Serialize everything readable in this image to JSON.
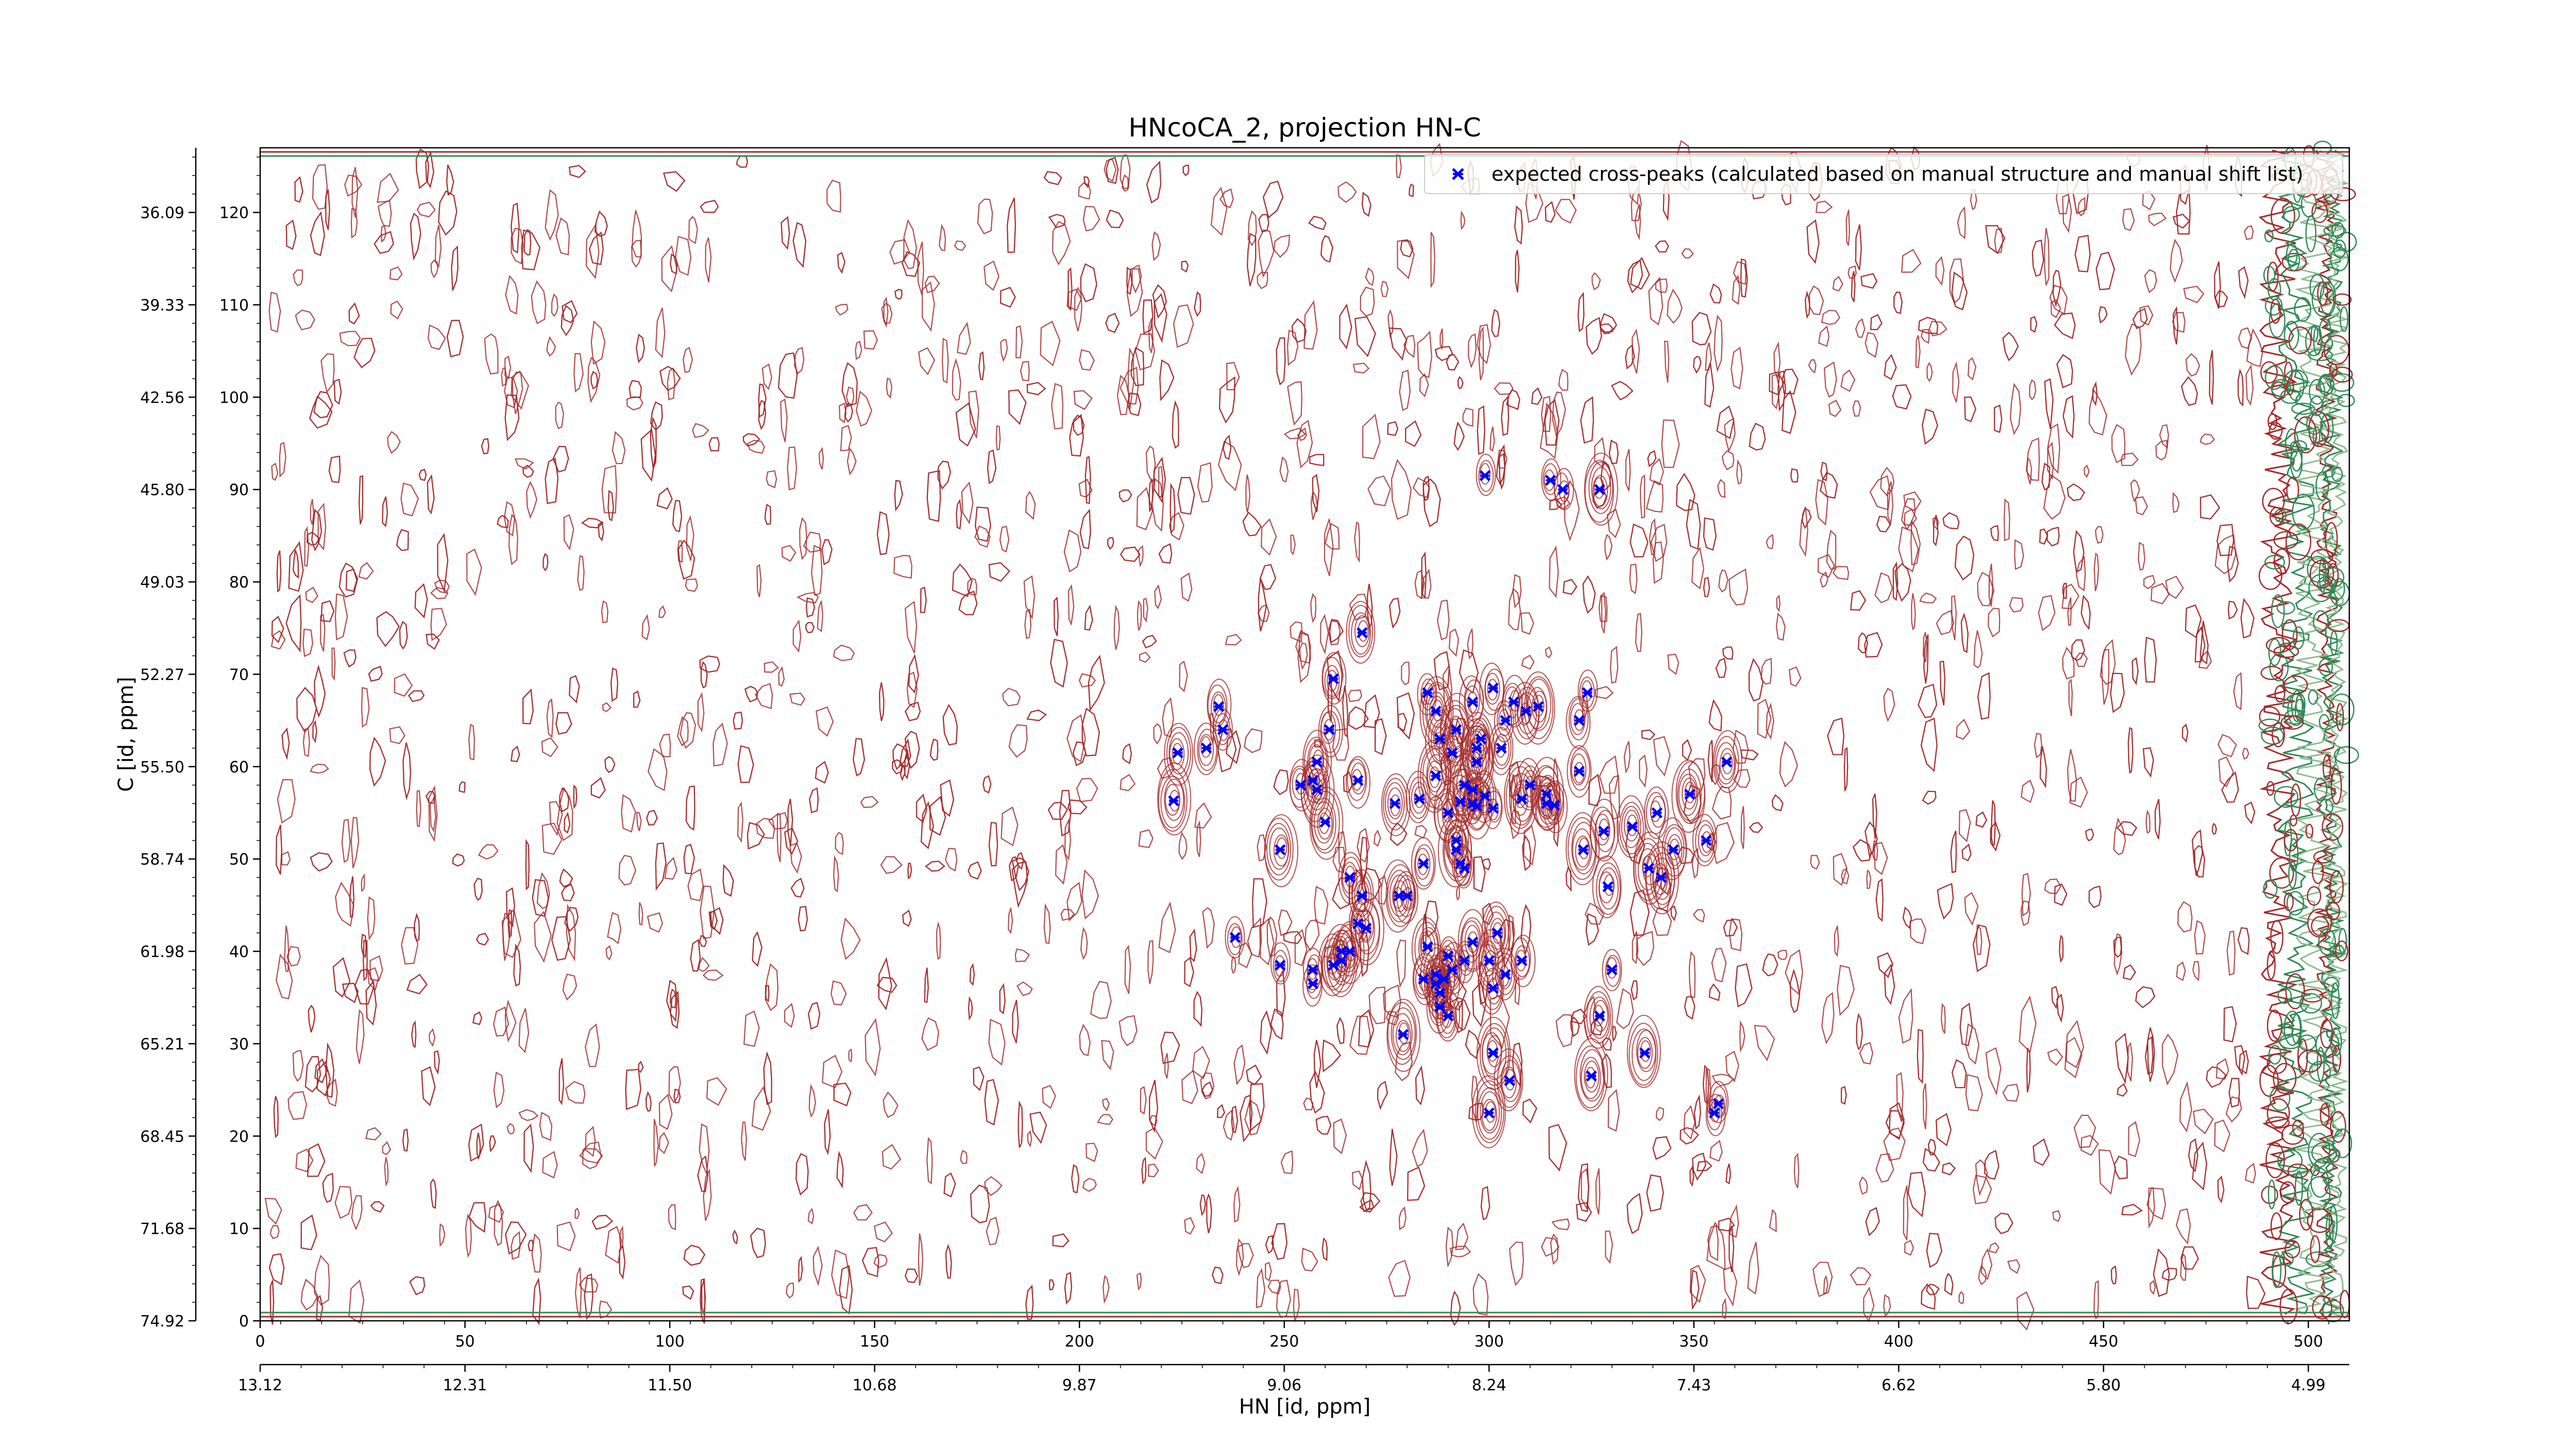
{
  "chart_data": {
    "type": "scatter",
    "title": "HNcoCA_2, projection HN-C",
    "xlabel": "HN [id, ppm]",
    "ylabel": "C [id, ppm]",
    "xlim": [
      0,
      510
    ],
    "ylim": [
      0,
      127
    ],
    "x_ticks": [
      0,
      50,
      100,
      150,
      200,
      250,
      300,
      350,
      400,
      450,
      500
    ],
    "y_ticks": [
      0,
      10,
      20,
      30,
      40,
      50,
      60,
      70,
      80,
      90,
      100,
      110,
      120
    ],
    "x_ppm_ticks": [
      {
        "x": 0,
        "label": "13.12"
      },
      {
        "x": 50,
        "label": "12.31"
      },
      {
        "x": 100,
        "label": "11.50"
      },
      {
        "x": 150,
        "label": "10.68"
      },
      {
        "x": 200,
        "label": "9.87"
      },
      {
        "x": 250,
        "label": "9.06"
      },
      {
        "x": 300,
        "label": "8.24"
      },
      {
        "x": 350,
        "label": "7.43"
      },
      {
        "x": 400,
        "label": "6.62"
      },
      {
        "x": 450,
        "label": "5.80"
      },
      {
        "x": 500,
        "label": "4.99"
      }
    ],
    "y_ppm_ticks": [
      {
        "y": 0,
        "label": "74.92"
      },
      {
        "y": 10,
        "label": "71.68"
      },
      {
        "y": 20,
        "label": "68.45"
      },
      {
        "y": 30,
        "label": "65.21"
      },
      {
        "y": 40,
        "label": "61.98"
      },
      {
        "y": 50,
        "label": "58.74"
      },
      {
        "y": 60,
        "label": "55.50"
      },
      {
        "y": 70,
        "label": "52.27"
      },
      {
        "y": 80,
        "label": "49.03"
      },
      {
        "y": 90,
        "label": "45.80"
      },
      {
        "y": 100,
        "label": "42.56"
      },
      {
        "y": 110,
        "label": "39.33"
      },
      {
        "y": 120,
        "label": "36.09"
      }
    ],
    "legend": {
      "position": "top-right",
      "label": "expected cross-peaks (calculated based on manual structure and manual shift list)"
    },
    "series": [
      {
        "name": "expected cross-peaks (calculated based on manual structure and manual shift list)",
        "color": "#0000ff",
        "marker": "x",
        "points": [
          [
            299,
            91.5
          ],
          [
            315,
            91
          ],
          [
            318,
            90
          ],
          [
            327,
            90
          ],
          [
            269,
            74.5
          ],
          [
            262,
            69.5
          ],
          [
            234,
            66.5
          ],
          [
            235,
            64
          ],
          [
            231,
            62
          ],
          [
            224,
            61.5
          ],
          [
            223,
            56.3
          ],
          [
            261,
            64
          ],
          [
            258,
            60.5
          ],
          [
            257,
            58.5
          ],
          [
            254,
            58
          ],
          [
            258,
            57.5
          ],
          [
            260,
            54
          ],
          [
            249,
            51
          ],
          [
            268,
            58.5
          ],
          [
            285,
            68
          ],
          [
            287,
            66
          ],
          [
            296,
            67
          ],
          [
            301,
            68.5
          ],
          [
            306,
            67
          ],
          [
            309,
            66
          ],
          [
            312,
            66.5
          ],
          [
            304,
            65
          ],
          [
            288,
            63
          ],
          [
            292,
            64
          ],
          [
            298,
            63
          ],
          [
            297,
            62
          ],
          [
            303,
            62
          ],
          [
            291,
            61.5
          ],
          [
            297,
            60.5
          ],
          [
            287,
            59
          ],
          [
            294,
            58
          ],
          [
            296,
            57.5
          ],
          [
            299,
            56.8
          ],
          [
            308,
            56.5
          ],
          [
            310,
            58
          ],
          [
            314,
            57
          ],
          [
            322,
            59.5
          ],
          [
            296,
            56
          ],
          [
            293,
            56.2
          ],
          [
            297,
            55.7
          ],
          [
            301,
            55.5
          ],
          [
            314,
            56
          ],
          [
            316,
            55.8
          ],
          [
            283,
            56.5
          ],
          [
            277,
            56
          ],
          [
            290,
            55
          ],
          [
            324,
            68
          ],
          [
            322,
            65
          ],
          [
            358,
            60.5
          ],
          [
            323,
            51
          ],
          [
            328,
            53
          ],
          [
            335,
            53.5
          ],
          [
            341,
            55
          ],
          [
            349,
            57
          ],
          [
            353,
            52
          ],
          [
            345,
            51
          ],
          [
            339,
            49
          ],
          [
            342,
            48
          ],
          [
            329,
            47
          ],
          [
            284,
            49.5
          ],
          [
            293,
            49.5
          ],
          [
            294,
            49
          ],
          [
            292,
            51
          ],
          [
            292,
            52
          ],
          [
            266,
            48
          ],
          [
            269,
            46
          ],
          [
            278,
            46
          ],
          [
            280,
            46
          ],
          [
            268,
            43
          ],
          [
            270,
            42.5
          ],
          [
            264,
            40
          ],
          [
            257,
            38
          ],
          [
            238,
            41.5
          ],
          [
            249,
            38.5
          ],
          [
            257,
            36.5
          ],
          [
            262,
            38.5
          ],
          [
            264,
            39
          ],
          [
            266,
            40
          ],
          [
            285,
            40.5
          ],
          [
            290,
            39.5
          ],
          [
            296,
            41
          ],
          [
            291,
            38
          ],
          [
            287,
            37.5
          ],
          [
            289,
            37
          ],
          [
            284,
            37
          ],
          [
            287,
            36.5
          ],
          [
            288,
            35.5
          ],
          [
            288,
            34
          ],
          [
            290,
            33
          ],
          [
            301,
            36
          ],
          [
            302,
            42
          ],
          [
            308,
            39
          ],
          [
            294,
            39
          ],
          [
            300,
            39
          ],
          [
            304,
            37.5
          ],
          [
            330,
            38
          ],
          [
            327,
            33
          ],
          [
            279,
            31
          ],
          [
            301,
            29
          ],
          [
            305,
            26
          ],
          [
            300,
            22.5
          ],
          [
            325,
            26.5
          ],
          [
            338,
            29
          ],
          [
            355,
            22.5
          ],
          [
            356,
            23.5
          ]
        ]
      }
    ],
    "contour_colors": [
      "#a52a2a",
      "#2e8b57",
      "#8fbc8f"
    ],
    "grid": false
  }
}
